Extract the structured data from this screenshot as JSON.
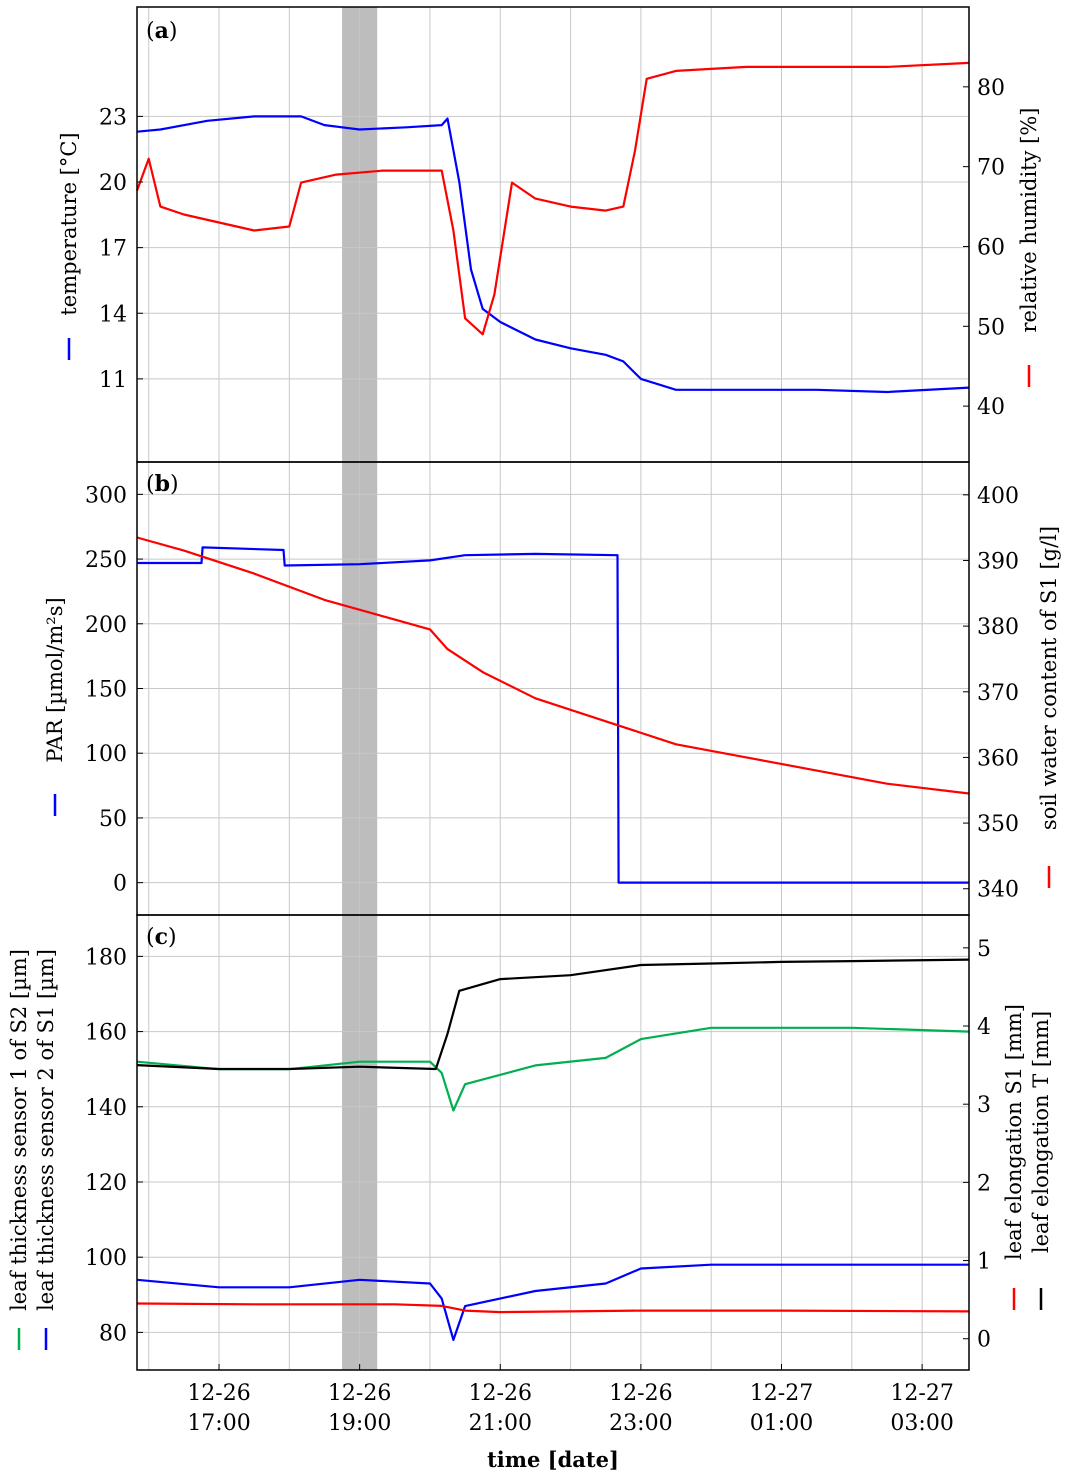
{
  "chart_data": {
    "type": "line",
    "x_axis": {
      "label": "time [date]",
      "range": [
        "12-26 15:50",
        "12-27 03:40"
      ],
      "ticks": [
        {
          "date": "12-26",
          "time": "17:00"
        },
        {
          "date": "12-26",
          "time": "19:00"
        },
        {
          "date": "12-26",
          "time": "21:00"
        },
        {
          "date": "12-26",
          "time": "23:00"
        },
        {
          "date": "12-27",
          "time": "01:00"
        },
        {
          "date": "12-27",
          "time": "03:00"
        }
      ],
      "minor_grid_step_minutes": 60
    },
    "shaded_interval": {
      "start": "12-26 18:45",
      "end": "12-26 19:15",
      "color": "#bdbdbd"
    },
    "grid": true,
    "panels": [
      {
        "label_open": "(",
        "label_letter": "a",
        "label_close": ")",
        "left_axis": {
          "label": "temperature [°C]",
          "range": [
            7.2,
            28
          ],
          "ticks": [
            11,
            14,
            17,
            20,
            23
          ]
        },
        "right_axis": {
          "label": "relative humidity [%]",
          "range": [
            33,
            90
          ],
          "ticks": [
            40,
            50,
            60,
            70,
            80
          ]
        },
        "series": [
          {
            "axis": "left",
            "color": "#0000ff",
            "points": [
              [
                "12-26 15:50",
                22.3
              ],
              [
                "12-26 16:10",
                22.4
              ],
              [
                "12-26 16:50",
                22.8
              ],
              [
                "12-26 17:30",
                23.0
              ],
              [
                "12-26 18:10",
                23.0
              ],
              [
                "12-26 18:30",
                22.6
              ],
              [
                "12-26 19:00",
                22.4
              ],
              [
                "12-26 19:40",
                22.5
              ],
              [
                "12-26 20:10",
                22.6
              ],
              [
                "12-26 20:15",
                22.9
              ],
              [
                "12-26 20:25",
                20.0
              ],
              [
                "12-26 20:35",
                16.0
              ],
              [
                "12-26 20:45",
                14.2
              ],
              [
                "12-26 21:00",
                13.6
              ],
              [
                "12-26 21:30",
                12.8
              ],
              [
                "12-26 22:00",
                12.4
              ],
              [
                "12-26 22:30",
                12.1
              ],
              [
                "12-26 22:45",
                11.8
              ],
              [
                "12-26 23:00",
                11.0
              ],
              [
                "12-26 23:30",
                10.5
              ],
              [
                "12-27 00:30",
                10.5
              ],
              [
                "12-27 01:30",
                10.5
              ],
              [
                "12-27 02:30",
                10.4
              ],
              [
                "12-27 03:40",
                10.6
              ]
            ]
          },
          {
            "axis": "right",
            "color": "#ff0000",
            "points": [
              [
                "12-26 15:50",
                67
              ],
              [
                "12-26 16:00",
                71
              ],
              [
                "12-26 16:10",
                65
              ],
              [
                "12-26 16:30",
                64
              ],
              [
                "12-26 17:00",
                63
              ],
              [
                "12-26 17:30",
                62
              ],
              [
                "12-26 18:00",
                62.5
              ],
              [
                "12-26 18:10",
                68
              ],
              [
                "12-26 18:40",
                69
              ],
              [
                "12-26 19:20",
                69.5
              ],
              [
                "12-26 20:10",
                69.5
              ],
              [
                "12-26 20:20",
                62
              ],
              [
                "12-26 20:30",
                51
              ],
              [
                "12-26 20:45",
                49
              ],
              [
                "12-26 20:55",
                54
              ],
              [
                "12-26 21:10",
                68
              ],
              [
                "12-26 21:30",
                66
              ],
              [
                "12-26 22:00",
                65
              ],
              [
                "12-26 22:30",
                64.5
              ],
              [
                "12-26 22:45",
                65
              ],
              [
                "12-26 22:55",
                72
              ],
              [
                "12-26 23:05",
                81
              ],
              [
                "12-26 23:30",
                82
              ],
              [
                "12-27 00:30",
                82.5
              ],
              [
                "12-27 01:30",
                82.5
              ],
              [
                "12-27 02:30",
                82.5
              ],
              [
                "12-27 03:40",
                83
              ]
            ]
          }
        ]
      },
      {
        "label_open": "(",
        "label_letter": "b",
        "label_close": ")",
        "left_axis": {
          "label": "PAR [µmol/m²s]",
          "range": [
            -25,
            325
          ],
          "ticks": [
            0,
            50,
            100,
            150,
            200,
            250,
            300
          ]
        },
        "right_axis": {
          "label": "soil water content of S1 [g/l]",
          "range": [
            336,
            405
          ],
          "ticks": [
            340,
            350,
            360,
            370,
            380,
            390,
            400
          ]
        },
        "series": [
          {
            "axis": "left",
            "color": "#0000ff",
            "points": [
              [
                "12-26 15:50",
                247
              ],
              [
                "12-26 16:45",
                247
              ],
              [
                "12-26 16:46",
                259
              ],
              [
                "12-26 17:55",
                257
              ],
              [
                "12-26 17:56",
                245
              ],
              [
                "12-26 19:00",
                246
              ],
              [
                "12-26 20:00",
                249
              ],
              [
                "12-26 20:30",
                253
              ],
              [
                "12-26 21:30",
                254
              ],
              [
                "12-26 22:40",
                253
              ],
              [
                "12-26 22:41",
                0
              ],
              [
                "12-27 03:40",
                0
              ]
            ]
          },
          {
            "axis": "right",
            "color": "#ff0000",
            "points": [
              [
                "12-26 15:50",
                393.5
              ],
              [
                "12-26 16:30",
                391.5
              ],
              [
                "12-26 17:30",
                388
              ],
              [
                "12-26 18:30",
                384
              ],
              [
                "12-26 19:30",
                381
              ],
              [
                "12-26 20:00",
                379.5
              ],
              [
                "12-26 20:15",
                376.5
              ],
              [
                "12-26 20:45",
                373
              ],
              [
                "12-26 21:30",
                369
              ],
              [
                "12-26 22:30",
                365.5
              ],
              [
                "12-26 23:30",
                362
              ],
              [
                "12-27 00:30",
                360
              ],
              [
                "12-27 01:30",
                358
              ],
              [
                "12-27 02:30",
                356
              ],
              [
                "12-27 03:40",
                354.5
              ]
            ]
          }
        ]
      },
      {
        "label_open": "(",
        "label_letter": "c",
        "label_close": ")",
        "left_axis": {
          "label_1": "leaf thickness sensor 1 of S2 [µm]",
          "label_2": "leaf thickness sensor 2 of S1 [µm]",
          "range": [
            70,
            191
          ],
          "ticks": [
            80,
            100,
            120,
            140,
            160,
            180
          ]
        },
        "right_axis": {
          "label_1": "leaf elongation S1 [mm]",
          "label_2": "leaf elongation T [mm]",
          "range": [
            -0.4,
            5.42
          ],
          "ticks": [
            0,
            1,
            2,
            3,
            4,
            5
          ]
        },
        "series": [
          {
            "axis": "left",
            "color": "#00b050",
            "points": [
              [
                "12-26 15:50",
                152
              ],
              [
                "12-26 17:00",
                150
              ],
              [
                "12-26 18:00",
                150
              ],
              [
                "12-26 19:00",
                152
              ],
              [
                "12-26 20:00",
                152
              ],
              [
                "12-26 20:10",
                149
              ],
              [
                "12-26 20:20",
                139
              ],
              [
                "12-26 20:30",
                146
              ],
              [
                "12-26 21:30",
                151
              ],
              [
                "12-26 22:30",
                153
              ],
              [
                "12-26 23:00",
                158
              ],
              [
                "12-27 00:00",
                161
              ],
              [
                "12-27 01:00",
                161
              ],
              [
                "12-27 02:00",
                161
              ],
              [
                "12-27 03:40",
                160
              ]
            ]
          },
          {
            "axis": "left",
            "color": "#0000ff",
            "points": [
              [
                "12-26 15:50",
                94
              ],
              [
                "12-26 17:00",
                92
              ],
              [
                "12-26 18:00",
                92
              ],
              [
                "12-26 19:00",
                94
              ],
              [
                "12-26 20:00",
                93
              ],
              [
                "12-26 20:10",
                89
              ],
              [
                "12-26 20:20",
                78
              ],
              [
                "12-26 20:30",
                87
              ],
              [
                "12-26 21:30",
                91
              ],
              [
                "12-26 22:30",
                93
              ],
              [
                "12-26 23:00",
                97
              ],
              [
                "12-27 00:00",
                98
              ],
              [
                "12-27 01:00",
                98
              ],
              [
                "12-27 02:00",
                98
              ],
              [
                "12-27 03:40",
                98
              ]
            ]
          },
          {
            "axis": "right",
            "color": "#ff0000",
            "points": [
              [
                "12-26 15:50",
                0.45
              ],
              [
                "12-26 17:30",
                0.44
              ],
              [
                "12-26 19:30",
                0.44
              ],
              [
                "12-26 20:10",
                0.42
              ],
              [
                "12-26 20:30",
                0.36
              ],
              [
                "12-26 21:00",
                0.34
              ],
              [
                "12-26 22:00",
                0.35
              ],
              [
                "12-26 23:00",
                0.36
              ],
              [
                "12-27 01:00",
                0.36
              ],
              [
                "12-27 03:40",
                0.35
              ]
            ]
          },
          {
            "axis": "right",
            "color": "#000000",
            "points": [
              [
                "12-26 15:50",
                3.5
              ],
              [
                "12-26 17:00",
                3.45
              ],
              [
                "12-26 18:00",
                3.45
              ],
              [
                "12-26 19:00",
                3.48
              ],
              [
                "12-26 20:05",
                3.45
              ],
              [
                "12-26 20:15",
                3.9
              ],
              [
                "12-26 20:25",
                4.45
              ],
              [
                "12-26 21:00",
                4.6
              ],
              [
                "12-26 22:00",
                4.65
              ],
              [
                "12-26 23:00",
                4.78
              ],
              [
                "12-27 00:00",
                4.8
              ],
              [
                "12-27 01:00",
                4.82
              ],
              [
                "12-27 02:00",
                4.83
              ],
              [
                "12-27 03:40",
                4.85
              ]
            ]
          }
        ]
      }
    ]
  }
}
